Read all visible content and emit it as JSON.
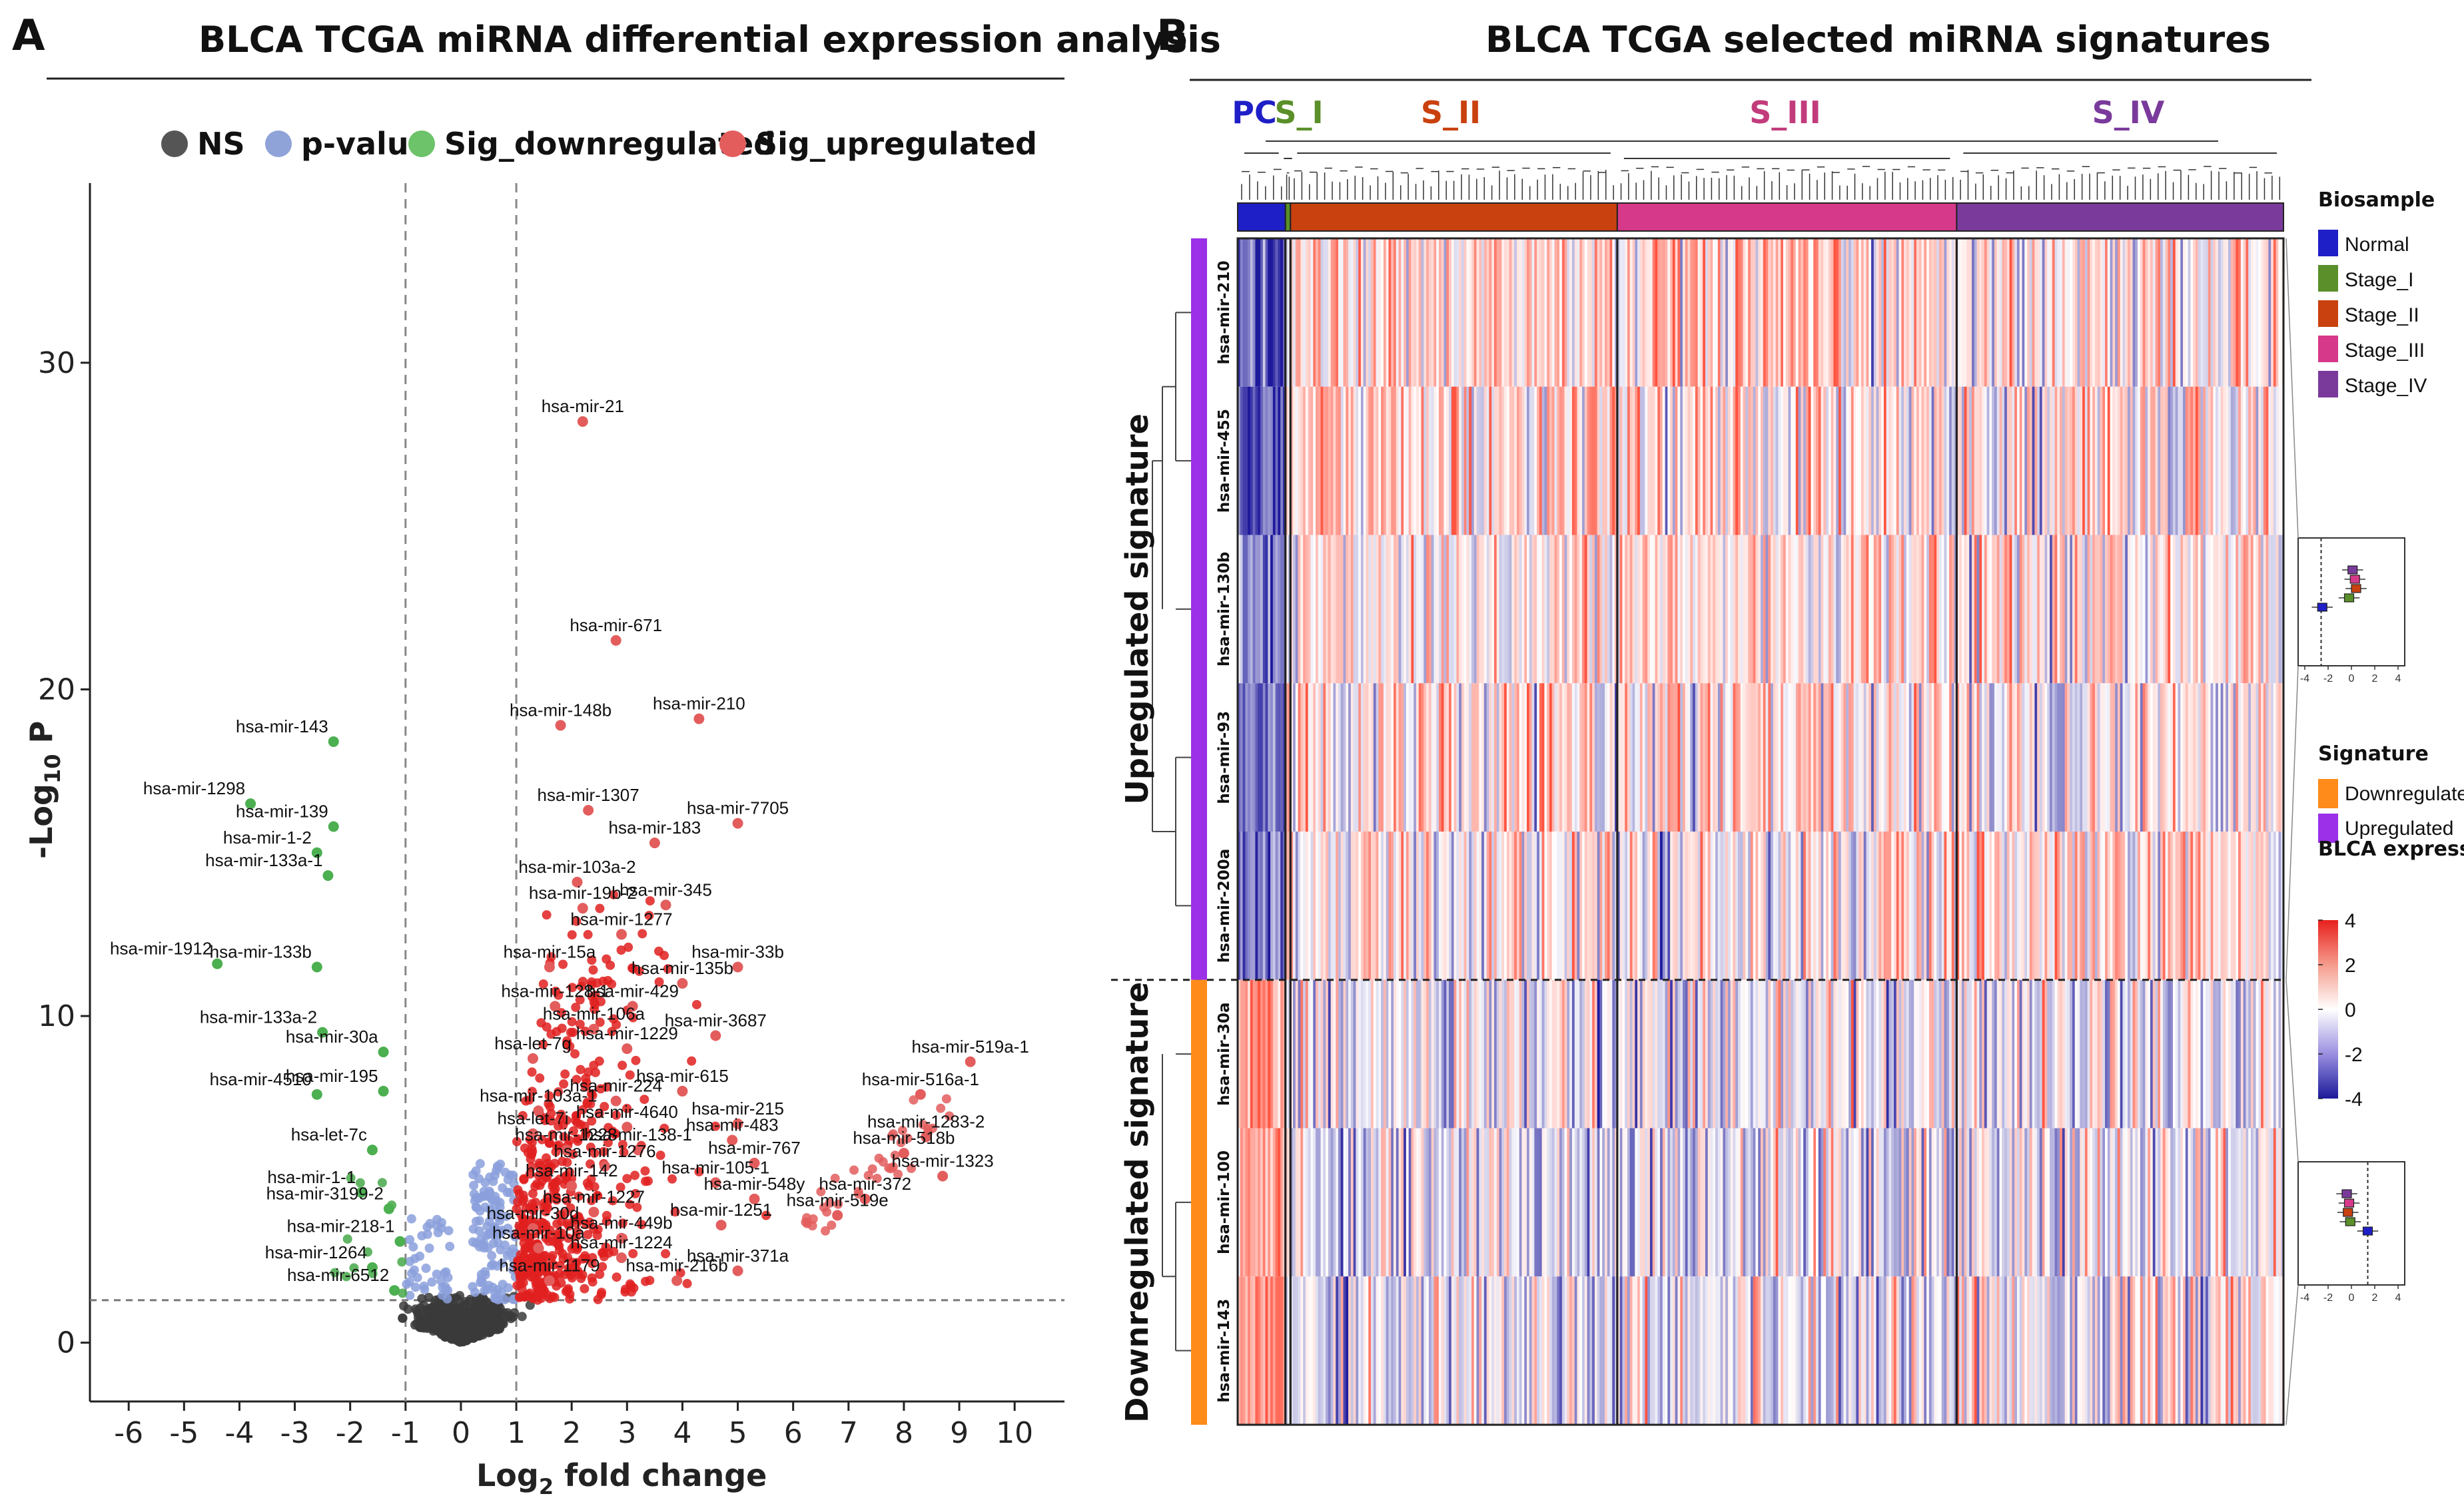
{
  "panel_a": {
    "letter": "A",
    "title": "BLCA TCGA miRNA differential expression analysis",
    "legend": [
      {
        "label": "NS",
        "color": "#555555"
      },
      {
        "label": "p-value",
        "color": "#8fa3d9"
      },
      {
        "label": "Sig_downregulated",
        "color": "#6cc36a"
      },
      {
        "label": "Sig_upregulated",
        "color": "#e35d5d"
      }
    ]
  },
  "panel_b": {
    "letter": "B",
    "title": "BLCA TCGA selected miRNA signatures",
    "groups": [
      {
        "label": "PC",
        "color": "#1f1fc7",
        "n": 19
      },
      {
        "label": "S_I",
        "color": "#5a8f29",
        "n": 2
      },
      {
        "label": "S_II",
        "color": "#c9410f",
        "n": 130
      },
      {
        "label": "S_III",
        "color": "#c23c7c",
        "n": 135
      },
      {
        "label": "S_IV",
        "color": "#7a3a9b",
        "n": 130
      }
    ],
    "signatures": [
      {
        "label": "Upregulated signature",
        "color": "#9b30e8",
        "rows": [
          "hsa-mir-210",
          "hsa-mir-455",
          "hsa-mir-130b",
          "hsa-mir-93",
          "hsa-mir-200a"
        ]
      },
      {
        "label": "Downregulated signature",
        "color": "#ff8c1a",
        "rows": [
          "hsa-mir-30a",
          "hsa-mir-100",
          "hsa-mir-143"
        ]
      }
    ],
    "legend_biosample": {
      "title": "Biosample",
      "items": [
        {
          "label": "Normal",
          "color": "#1f1fc7"
        },
        {
          "label": "Stage_I",
          "color": "#5a8f29"
        },
        {
          "label": "Stage_II",
          "color": "#c9410f"
        },
        {
          "label": "Stage_III",
          "color": "#d6398a"
        },
        {
          "label": "Stage_IV",
          "color": "#7a3a9b"
        }
      ]
    },
    "legend_signature": {
      "title": "Signature",
      "items": [
        {
          "label": "Downregulated",
          "color": "#ff8c1a"
        },
        {
          "label": "Upregulated",
          "color": "#9b30e8"
        }
      ]
    },
    "legend_expression": {
      "title": "BLCA expression",
      "ticks": [
        "4",
        "2",
        "0",
        "-2",
        "-4"
      ],
      "range": [
        -4,
        4
      ]
    },
    "inset_ticks": [
      "-4",
      "-2",
      "0",
      "2",
      "4"
    ]
  },
  "chart_data": [
    {
      "type": "scatter",
      "title": "BLCA TCGA miRNA differential expression analysis",
      "xlabel": "Log2 fold change",
      "ylabel": "-Log10 P",
      "xlim": [
        -6.7,
        10.9
      ],
      "ylim": [
        -1.8,
        35.5
      ],
      "xticks": [
        "-6",
        "-5",
        "-4",
        "-3",
        "-2",
        "-1",
        "0",
        "1",
        "2",
        "3",
        "4",
        "5",
        "6",
        "7",
        "8",
        "9",
        "10"
      ],
      "yticks": [
        "0",
        "10",
        "20",
        "30"
      ],
      "fc_cutoff": [
        -1,
        1
      ],
      "p_cutoff": 1.3,
      "labeled_points": [
        {
          "label": "hsa-mir-21",
          "x": 2.2,
          "y": 28.2,
          "group": "up"
        },
        {
          "label": "hsa-mir-671",
          "x": 2.8,
          "y": 21.5,
          "group": "up"
        },
        {
          "label": "hsa-mir-148b",
          "x": 1.8,
          "y": 18.9,
          "group": "up"
        },
        {
          "label": "hsa-mir-210",
          "x": 4.3,
          "y": 19.1,
          "group": "up"
        },
        {
          "label": "hsa-mir-1307",
          "x": 2.3,
          "y": 16.3,
          "group": "up"
        },
        {
          "label": "hsa-mir-7705",
          "x": 5.0,
          "y": 15.9,
          "group": "up"
        },
        {
          "label": "hsa-mir-183",
          "x": 3.5,
          "y": 15.3,
          "group": "up"
        },
        {
          "label": "hsa-mir-103a-2",
          "x": 2.1,
          "y": 14.1,
          "group": "up"
        },
        {
          "label": "hsa-mir-345",
          "x": 3.7,
          "y": 13.4,
          "group": "up"
        },
        {
          "label": "hsa-mir-19b-2",
          "x": 2.2,
          "y": 13.3,
          "group": "up"
        },
        {
          "label": "hsa-mir-1277",
          "x": 2.9,
          "y": 12.5,
          "group": "up"
        },
        {
          "label": "hsa-mir-33b",
          "x": 5.0,
          "y": 11.5,
          "group": "up"
        },
        {
          "label": "hsa-mir-15a",
          "x": 1.6,
          "y": 11.5,
          "group": "up"
        },
        {
          "label": "hsa-mir-135b",
          "x": 4.0,
          "y": 11.0,
          "group": "up"
        },
        {
          "label": "hsa-mir-128-1",
          "x": 1.7,
          "y": 10.3,
          "group": "up"
        },
        {
          "label": "hsa-mir-429",
          "x": 3.1,
          "y": 10.3,
          "group": "up"
        },
        {
          "label": "hsa-mir-106a",
          "x": 2.4,
          "y": 9.6,
          "group": "up"
        },
        {
          "label": "hsa-mir-3687",
          "x": 4.6,
          "y": 9.4,
          "group": "up"
        },
        {
          "label": "hsa-mir-1229",
          "x": 3.0,
          "y": 9.0,
          "group": "up"
        },
        {
          "label": "hsa-let-7g",
          "x": 1.3,
          "y": 8.7,
          "group": "up"
        },
        {
          "label": "hsa-mir-519a-1",
          "x": 9.2,
          "y": 8.6,
          "group": "up"
        },
        {
          "label": "hsa-mir-516a-1",
          "x": 8.3,
          "y": 7.6,
          "group": "up"
        },
        {
          "label": "hsa-mir-615",
          "x": 4.0,
          "y": 7.7,
          "group": "up"
        },
        {
          "label": "hsa-mir-224",
          "x": 2.8,
          "y": 7.4,
          "group": "up"
        },
        {
          "label": "hsa-mir-103a-1",
          "x": 1.4,
          "y": 7.1,
          "group": "up"
        },
        {
          "label": "hsa-mir-215",
          "x": 5.0,
          "y": 6.7,
          "group": "up"
        },
        {
          "label": "hsa-mir-4640",
          "x": 3.0,
          "y": 6.6,
          "group": "up"
        },
        {
          "label": "hsa-let-7i",
          "x": 1.3,
          "y": 6.4,
          "group": "up"
        },
        {
          "label": "hsa-mir-1283-2",
          "x": 8.4,
          "y": 6.3,
          "group": "up"
        },
        {
          "label": "hsa-mir-483",
          "x": 4.9,
          "y": 6.2,
          "group": "up"
        },
        {
          "label": "hsa-mir-1228",
          "x": 1.9,
          "y": 5.9,
          "group": "up"
        },
        {
          "label": "hsa-mir-138-1",
          "x": 3.2,
          "y": 5.9,
          "group": "up"
        },
        {
          "label": "hsa-mir-518b",
          "x": 8.0,
          "y": 5.8,
          "group": "up"
        },
        {
          "label": "hsa-mir-767",
          "x": 5.3,
          "y": 5.5,
          "group": "up"
        },
        {
          "label": "hsa-mir-1276",
          "x": 2.6,
          "y": 5.4,
          "group": "up"
        },
        {
          "label": "hsa-mir-1323",
          "x": 8.7,
          "y": 5.1,
          "group": "up"
        },
        {
          "label": "hsa-mir-105-1",
          "x": 4.6,
          "y": 4.9,
          "group": "up"
        },
        {
          "label": "hsa-mir-142",
          "x": 2.0,
          "y": 4.8,
          "group": "up"
        },
        {
          "label": "hsa-mir-548y",
          "x": 5.3,
          "y": 4.4,
          "group": "up"
        },
        {
          "label": "hsa-mir-372",
          "x": 7.3,
          "y": 4.4,
          "group": "up"
        },
        {
          "label": "hsa-mir-1227",
          "x": 2.4,
          "y": 4.0,
          "group": "up"
        },
        {
          "label": "hsa-mir-519e",
          "x": 6.8,
          "y": 3.9,
          "group": "up"
        },
        {
          "label": "hsa-mir-1251",
          "x": 4.7,
          "y": 3.6,
          "group": "up"
        },
        {
          "label": "hsa-mir-30d",
          "x": 1.3,
          "y": 3.5,
          "group": "up"
        },
        {
          "label": "hsa-mir-449b",
          "x": 2.9,
          "y": 3.2,
          "group": "up"
        },
        {
          "label": "hsa-mir-10a",
          "x": 1.4,
          "y": 2.9,
          "group": "up"
        },
        {
          "label": "hsa-mir-1224",
          "x": 2.9,
          "y": 2.6,
          "group": "up"
        },
        {
          "label": "hsa-mir-371a",
          "x": 5.0,
          "y": 2.2,
          "group": "up"
        },
        {
          "label": "hsa-mir-216b",
          "x": 3.9,
          "y": 1.9,
          "group": "up"
        },
        {
          "label": "hsa-mir-1179",
          "x": 1.6,
          "y": 1.9,
          "group": "up"
        },
        {
          "label": "hsa-mir-143",
          "x": -2.3,
          "y": 18.4,
          "group": "down"
        },
        {
          "label": "hsa-mir-1298",
          "x": -3.8,
          "y": 16.5,
          "group": "down"
        },
        {
          "label": "hsa-mir-139",
          "x": -2.3,
          "y": 15.8,
          "group": "down"
        },
        {
          "label": "hsa-mir-1-2",
          "x": -2.6,
          "y": 15.0,
          "group": "down"
        },
        {
          "label": "hsa-mir-133a-1",
          "x": -2.4,
          "y": 14.3,
          "group": "down"
        },
        {
          "label": "hsa-mir-1912",
          "x": -4.4,
          "y": 11.6,
          "group": "down"
        },
        {
          "label": "hsa-mir-133b",
          "x": -2.6,
          "y": 11.5,
          "group": "down"
        },
        {
          "label": "hsa-mir-133a-2",
          "x": -2.5,
          "y": 9.5,
          "group": "down"
        },
        {
          "label": "hsa-mir-30a",
          "x": -1.4,
          "y": 8.9,
          "group": "down"
        },
        {
          "label": "hsa-mir-4510",
          "x": -2.6,
          "y": 7.6,
          "group": "down"
        },
        {
          "label": "hsa-mir-195",
          "x": -1.4,
          "y": 7.7,
          "group": "down"
        },
        {
          "label": "hsa-let-7c",
          "x": -1.6,
          "y": 5.9,
          "group": "down"
        },
        {
          "label": "hsa-mir-1-1",
          "x": -1.8,
          "y": 4.6,
          "group": "down"
        },
        {
          "label": "hsa-mir-3199-2",
          "x": -1.3,
          "y": 4.1,
          "group": "down"
        },
        {
          "label": "hsa-mir-218-1",
          "x": -1.1,
          "y": 3.1,
          "group": "down"
        },
        {
          "label": "hsa-mir-1264",
          "x": -1.6,
          "y": 2.3,
          "group": "down"
        },
        {
          "label": "hsa-mir-6512",
          "x": -1.2,
          "y": 1.6,
          "group": "down"
        }
      ]
    },
    {
      "type": "heatmap",
      "title": "BLCA TCGA selected miRNA signatures",
      "rows": [
        "hsa-mir-210",
        "hsa-mir-455",
        "hsa-mir-130b",
        "hsa-mir-93",
        "hsa-mir-200a",
        "hsa-mir-30a",
        "hsa-mir-100",
        "hsa-mir-143"
      ],
      "column_groups": [
        "PC",
        "S_I",
        "S_II",
        "S_III",
        "S_IV"
      ],
      "value_range": [
        -4,
        4
      ],
      "row_group_means": [
        {
          "row": "hsa-mir-210",
          "PC": -2.6,
          "S_I": 0.3,
          "S_II": 0.6,
          "S_III": 0.5,
          "S_IV": 0.4
        },
        {
          "row": "hsa-mir-455",
          "PC": -2.2,
          "S_I": 0.4,
          "S_II": 0.7,
          "S_III": 0.5,
          "S_IV": 0.3
        },
        {
          "row": "hsa-mir-130b",
          "PC": -1.8,
          "S_I": 0.2,
          "S_II": 0.4,
          "S_III": 0.5,
          "S_IV": 0.4
        },
        {
          "row": "hsa-mir-93",
          "PC": -1.6,
          "S_I": 0.3,
          "S_II": 0.3,
          "S_III": 0.4,
          "S_IV": 0.3
        },
        {
          "row": "hsa-mir-200a",
          "PC": -2.0,
          "S_I": 0.5,
          "S_II": 0.3,
          "S_III": 0.2,
          "S_IV": 0.4
        },
        {
          "row": "hsa-mir-30a",
          "PC": 1.6,
          "S_I": 0.0,
          "S_II": -0.3,
          "S_III": -0.2,
          "S_IV": -0.1
        },
        {
          "row": "hsa-mir-100",
          "PC": 1.4,
          "S_I": -0.3,
          "S_II": -0.4,
          "S_III": -0.3,
          "S_IV": -0.3
        },
        {
          "row": "hsa-mir-143",
          "PC": 1.8,
          "S_I": -0.4,
          "S_II": -0.2,
          "S_III": -0.1,
          "S_IV": 0.0
        }
      ],
      "inset_boxplots": [
        {
          "signature": "Upregulated",
          "Normal": -2.5,
          "Stage_I": -0.2,
          "Stage_II": 0.4,
          "Stage_III": 0.3,
          "Stage_IV": 0.1
        },
        {
          "signature": "Downregulated",
          "Normal": 1.4,
          "Stage_I": -0.1,
          "Stage_II": -0.3,
          "Stage_III": -0.2,
          "Stage_IV": -0.4
        }
      ]
    }
  ]
}
